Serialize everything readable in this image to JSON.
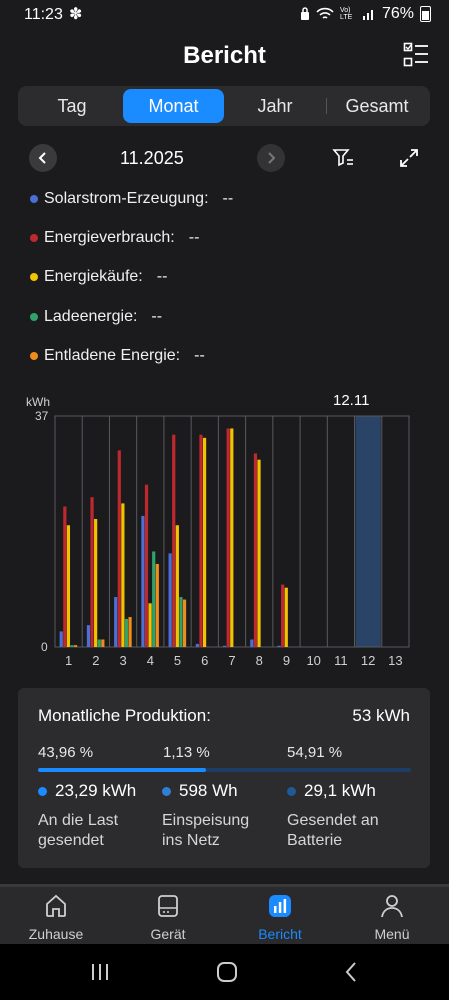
{
  "status": {
    "time": "11:23",
    "battery": "76%",
    "network": "Vo) LTE"
  },
  "header": {
    "title": "Bericht"
  },
  "tabs": [
    {
      "label": "Tag",
      "active": false
    },
    {
      "label": "Monat",
      "active": true
    },
    {
      "label": "Jahr",
      "active": false
    },
    {
      "label": "Gesamt",
      "active": false
    }
  ],
  "date_nav": {
    "date": "11.2025"
  },
  "legend": [
    {
      "label": "Solarstrom-Erzeugung:",
      "value": "--",
      "color": "#4a6fd6"
    },
    {
      "label": "Energieverbrauch:",
      "value": "--",
      "color": "#c0282f"
    },
    {
      "label": "Energiekäufe:",
      "value": "--",
      "color": "#f2c400"
    },
    {
      "label": "Ladeenergie:",
      "value": "--",
      "color": "#2fa36b"
    },
    {
      "label": "Entladene Energie:",
      "value": "--",
      "color": "#ef8c1a"
    }
  ],
  "chart_data": {
    "type": "bar",
    "ylabel": "kWh",
    "ylim": [
      0,
      37
    ],
    "yticks": [
      "0",
      "37"
    ],
    "categories": [
      "1",
      "2",
      "3",
      "4",
      "5",
      "6",
      "7",
      "8",
      "9",
      "10",
      "11",
      "12",
      "13"
    ],
    "highlight_category": "12",
    "highlight_label": "12.11",
    "series": [
      {
        "name": "Solarstrom-Erzeugung",
        "color": "#4a6fd6",
        "values": [
          2.5,
          3.5,
          8,
          21,
          15,
          0.5,
          0.2,
          1.2,
          0.2,
          0,
          0,
          0,
          0
        ]
      },
      {
        "name": "Energieverbrauch",
        "color": "#c0282f",
        "values": [
          22.5,
          24,
          31.5,
          26,
          34,
          34,
          35,
          31,
          10,
          0,
          0,
          0,
          0
        ]
      },
      {
        "name": "Energiekäufe",
        "color": "#f2c400",
        "values": [
          19.5,
          20.5,
          23,
          7,
          19.5,
          33.5,
          35,
          30,
          9.5,
          0,
          0,
          0,
          0
        ]
      },
      {
        "name": "Ladeenergie",
        "color": "#2fa36b",
        "values": [
          0.3,
          1.2,
          4.5,
          15.3,
          8,
          0,
          0,
          0,
          0,
          0,
          0,
          0,
          0
        ]
      },
      {
        "name": "Entladene Energie",
        "color": "#ef8c1a",
        "values": [
          0.3,
          1.2,
          4.8,
          13.3,
          7.6,
          0,
          0,
          0,
          0,
          0,
          0,
          0,
          0
        ]
      }
    ]
  },
  "production": {
    "title": "Monatliche Produktion:",
    "value": "53 kWh",
    "percents": [
      "43,96 %",
      "1,13 %",
      "54,91 %"
    ],
    "progress_fraction": 0.4509,
    "stats": [
      {
        "value": "23,29 kWh",
        "label1": "An die Last",
        "label2": "gesendet",
        "color": "#1a8cff"
      },
      {
        "value": "598 Wh",
        "label1": "Einspeisung",
        "label2": "ins Netz",
        "color": "#2f7fd6"
      },
      {
        "value": "29,1 kWh",
        "label1": "Gesendet an",
        "label2": "Batterie",
        "color": "#1f5a96"
      }
    ]
  },
  "bottom_nav": [
    {
      "label": "Zuhause",
      "icon": "home-icon",
      "active": false
    },
    {
      "label": "Gerät",
      "icon": "device-icon",
      "active": false
    },
    {
      "label": "Bericht",
      "icon": "report-icon",
      "active": true
    },
    {
      "label": "Menü",
      "icon": "profile-icon",
      "active": false
    }
  ]
}
